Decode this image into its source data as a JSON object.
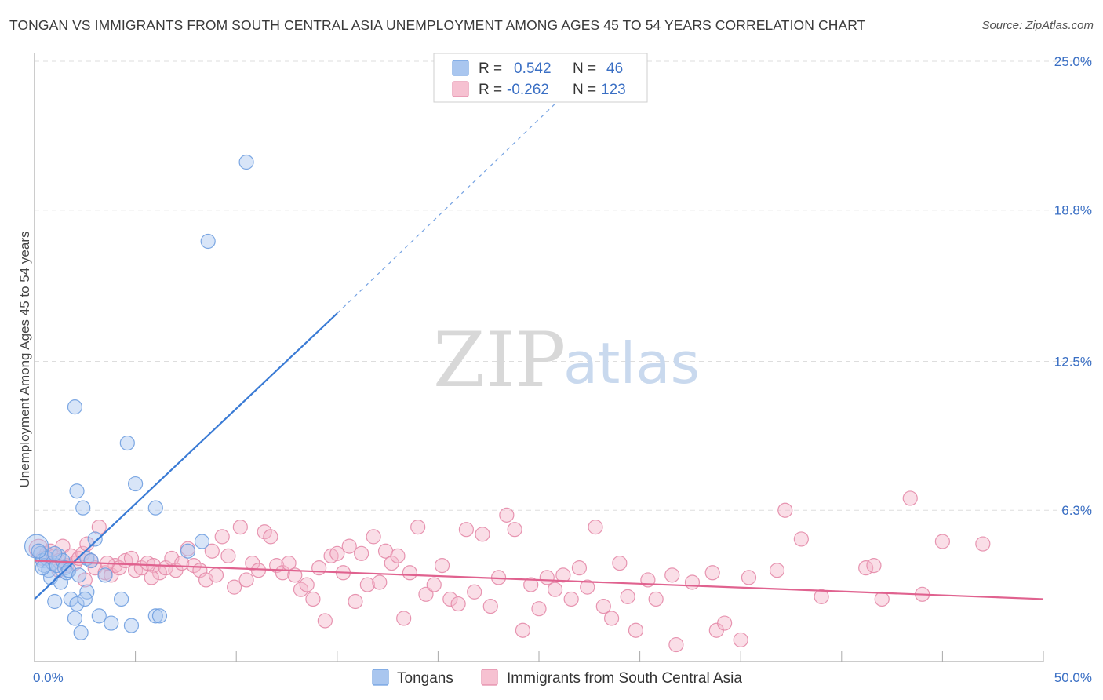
{
  "title": "TONGAN VS IMMIGRANTS FROM SOUTH CENTRAL ASIA UNEMPLOYMENT AMONG AGES 45 TO 54 YEARS CORRELATION CHART",
  "source": "Source: ZipAtlas.com",
  "watermark": {
    "zip": "ZIP",
    "atlas": "atlas"
  },
  "colors": {
    "blue": "#3a7bd5",
    "blue_fill": "#a9c6ef",
    "pink": "#e0628f",
    "pink_fill": "#f4b6ca",
    "tick_text": "#3a6fc4",
    "grid": "#dddddd"
  },
  "legend": {
    "r_label": "R =",
    "n_label": "N =",
    "rows": [
      {
        "r": "0.542",
        "n": "46",
        "color": "#a9c6ef",
        "stroke": "#6f9fe0"
      },
      {
        "r": "-0.262",
        "n": "123",
        "color": "#f6c1d1",
        "stroke": "#e48aa8"
      }
    ]
  },
  "bottom_legend": [
    {
      "label": "Tongans",
      "color": "#a9c6ef",
      "stroke": "#6f9fe0"
    },
    {
      "label": "Immigrants from South Central Asia",
      "color": "#f6c1d1",
      "stroke": "#e48aa8"
    }
  ],
  "chart_data": {
    "type": "scatter",
    "xlabel": "",
    "ylabel": "Unemployment Among Ages 45 to 54 years",
    "xlim": [
      0,
      50
    ],
    "ylim": [
      0,
      25.0
    ],
    "x_tick_labels": [
      "0.0%",
      "50.0%"
    ],
    "y_ticks": [
      6.3,
      12.5,
      18.8,
      25.0
    ],
    "y_tick_labels": [
      "6.3%",
      "12.5%",
      "18.8%",
      "25.0%"
    ],
    "grid": true,
    "legend_position": "top-center",
    "series": [
      {
        "name": "Tongans",
        "r": 0.542,
        "n": 46,
        "trend": {
          "x": [
            0,
            15
          ],
          "y": [
            2.6,
            14.5
          ],
          "dashed_to": [
            27,
            24.2
          ]
        },
        "points": [
          [
            0.1,
            4.8
          ],
          [
            0.3,
            4.5
          ],
          [
            0.4,
            4.2
          ],
          [
            0.5,
            4.0
          ],
          [
            0.6,
            4.3
          ],
          [
            0.7,
            3.8
          ],
          [
            0.8,
            3.5
          ],
          [
            0.9,
            4.1
          ],
          [
            1.0,
            2.5
          ],
          [
            1.1,
            4.0
          ],
          [
            1.2,
            4.4
          ],
          [
            1.3,
            3.3
          ],
          [
            1.4,
            4.2
          ],
          [
            1.5,
            3.9
          ],
          [
            1.6,
            3.7
          ],
          [
            1.7,
            3.8
          ],
          [
            1.8,
            2.6
          ],
          [
            2.0,
            1.8
          ],
          [
            2.1,
            2.4
          ],
          [
            2.2,
            3.6
          ],
          [
            2.3,
            1.2
          ],
          [
            2.0,
            10.6
          ],
          [
            2.1,
            7.1
          ],
          [
            2.4,
            6.4
          ],
          [
            2.6,
            4.3
          ],
          [
            2.6,
            2.9
          ],
          [
            2.5,
            2.6
          ],
          [
            2.8,
            4.2
          ],
          [
            3.0,
            5.1
          ],
          [
            3.2,
            1.9
          ],
          [
            3.5,
            3.6
          ],
          [
            3.8,
            1.6
          ],
          [
            4.3,
            2.6
          ],
          [
            4.6,
            9.1
          ],
          [
            4.8,
            1.5
          ],
          [
            5.0,
            7.4
          ],
          [
            6.0,
            6.4
          ],
          [
            6.0,
            1.9
          ],
          [
            6.2,
            1.9
          ],
          [
            7.6,
            4.6
          ],
          [
            8.3,
            5.0
          ],
          [
            8.6,
            17.5
          ],
          [
            10.5,
            20.8
          ],
          [
            0.2,
            4.6
          ],
          [
            0.4,
            3.9
          ],
          [
            1.0,
            4.5
          ]
        ]
      },
      {
        "name": "Immigrants from South Central Asia",
        "r": -0.262,
        "n": 123,
        "trend": {
          "x": [
            0,
            50
          ],
          "y": [
            4.2,
            2.6
          ]
        },
        "points": [
          [
            0.2,
            4.7
          ],
          [
            0.4,
            4.3
          ],
          [
            0.6,
            4.5
          ],
          [
            0.8,
            4.6
          ],
          [
            1.0,
            4.4
          ],
          [
            1.2,
            4.2
          ],
          [
            1.4,
            4.8
          ],
          [
            1.6,
            4.0
          ],
          [
            1.8,
            4.4
          ],
          [
            2.0,
            4.1
          ],
          [
            2.2,
            4.3
          ],
          [
            2.4,
            4.5
          ],
          [
            2.6,
            4.9
          ],
          [
            2.8,
            4.2
          ],
          [
            3.0,
            3.9
          ],
          [
            3.2,
            5.6
          ],
          [
            3.5,
            3.7
          ],
          [
            3.8,
            3.6
          ],
          [
            4.0,
            4.0
          ],
          [
            4.2,
            3.9
          ],
          [
            4.5,
            4.2
          ],
          [
            4.8,
            4.3
          ],
          [
            5.0,
            3.8
          ],
          [
            5.3,
            3.9
          ],
          [
            5.6,
            4.1
          ],
          [
            5.9,
            4.0
          ],
          [
            6.2,
            3.7
          ],
          [
            6.5,
            3.9
          ],
          [
            6.8,
            4.3
          ],
          [
            7.0,
            3.8
          ],
          [
            7.3,
            4.1
          ],
          [
            7.6,
            4.7
          ],
          [
            7.9,
            4.0
          ],
          [
            8.2,
            3.8
          ],
          [
            8.5,
            3.4
          ],
          [
            8.8,
            4.6
          ],
          [
            9.0,
            3.6
          ],
          [
            9.3,
            5.2
          ],
          [
            9.6,
            4.4
          ],
          [
            9.9,
            3.1
          ],
          [
            10.2,
            5.6
          ],
          [
            10.5,
            3.4
          ],
          [
            10.8,
            4.1
          ],
          [
            11.1,
            3.8
          ],
          [
            11.4,
            5.4
          ],
          [
            11.7,
            5.2
          ],
          [
            12.0,
            4.0
          ],
          [
            12.3,
            3.7
          ],
          [
            12.6,
            4.1
          ],
          [
            12.9,
            3.6
          ],
          [
            13.2,
            3.0
          ],
          [
            13.5,
            3.2
          ],
          [
            13.8,
            2.6
          ],
          [
            14.1,
            3.9
          ],
          [
            14.4,
            1.7
          ],
          [
            14.7,
            4.4
          ],
          [
            15.0,
            4.5
          ],
          [
            15.3,
            3.7
          ],
          [
            15.6,
            4.8
          ],
          [
            15.9,
            2.5
          ],
          [
            16.2,
            4.5
          ],
          [
            16.5,
            3.2
          ],
          [
            16.8,
            5.2
          ],
          [
            17.1,
            3.3
          ],
          [
            17.4,
            4.6
          ],
          [
            17.7,
            4.1
          ],
          [
            18.0,
            4.4
          ],
          [
            18.3,
            1.8
          ],
          [
            18.6,
            3.7
          ],
          [
            19.0,
            5.6
          ],
          [
            19.4,
            2.8
          ],
          [
            19.8,
            3.2
          ],
          [
            20.2,
            4.0
          ],
          [
            20.6,
            2.6
          ],
          [
            21.0,
            2.4
          ],
          [
            21.4,
            5.5
          ],
          [
            21.8,
            2.9
          ],
          [
            22.2,
            5.3
          ],
          [
            22.6,
            2.3
          ],
          [
            23.0,
            3.5
          ],
          [
            23.4,
            6.1
          ],
          [
            23.8,
            5.5
          ],
          [
            24.2,
            1.3
          ],
          [
            24.6,
            3.2
          ],
          [
            25.0,
            2.2
          ],
          [
            25.4,
            3.5
          ],
          [
            25.8,
            3.0
          ],
          [
            26.2,
            3.6
          ],
          [
            26.6,
            2.6
          ],
          [
            27.0,
            3.9
          ],
          [
            27.4,
            3.1
          ],
          [
            27.8,
            5.6
          ],
          [
            28.2,
            2.3
          ],
          [
            28.6,
            1.8
          ],
          [
            29.0,
            4.1
          ],
          [
            29.4,
            2.7
          ],
          [
            29.8,
            1.3
          ],
          [
            30.4,
            3.4
          ],
          [
            30.8,
            2.6
          ],
          [
            31.8,
            0.7
          ],
          [
            31.6,
            3.6
          ],
          [
            32.6,
            3.3
          ],
          [
            33.6,
            3.7
          ],
          [
            33.8,
            1.3
          ],
          [
            34.2,
            1.6
          ],
          [
            35.0,
            0.9
          ],
          [
            35.4,
            3.5
          ],
          [
            36.8,
            3.8
          ],
          [
            37.2,
            6.3
          ],
          [
            38.0,
            5.1
          ],
          [
            39.0,
            2.7
          ],
          [
            41.2,
            3.9
          ],
          [
            41.6,
            4.0
          ],
          [
            42.0,
            2.6
          ],
          [
            43.4,
            6.8
          ],
          [
            44.0,
            2.8
          ],
          [
            45.0,
            5.0
          ],
          [
            47.0,
            4.9
          ],
          [
            1.2,
            3.8
          ],
          [
            2.5,
            3.4
          ],
          [
            3.6,
            4.1
          ],
          [
            5.8,
            3.5
          ]
        ]
      }
    ]
  }
}
